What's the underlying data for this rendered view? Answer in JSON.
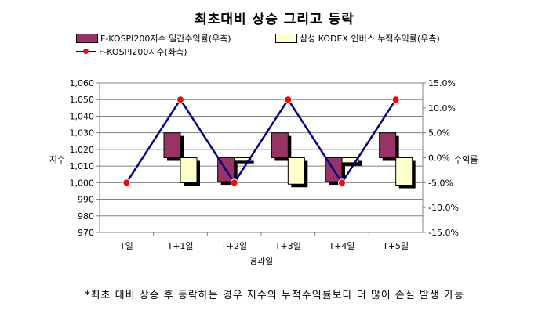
{
  "title": "최초대비 상승 그리고 등락",
  "footnote": "*최초 대비 상승 후 등락하는 경우 지수의 누적수익률보다 더 많이 손실 발생 가능",
  "legend": {
    "series1": "F-KOSPI200지수 일간수익률(우측)",
    "series2": "삼성 KODEX 인버스 누적수익률(우측)",
    "series3": "F-KOSPI200지수(좌측)"
  },
  "colors": {
    "bar1": "#993366",
    "bar2": "#ffffcc",
    "line": "#000080",
    "marker": "#ff0000"
  },
  "chart_data": {
    "type": "bar",
    "title": "최초대비 상승 그리고 등락",
    "xlabel": "경과일",
    "ylabel_left": "지수",
    "ylabel_right": "수익률",
    "categories": [
      "T일",
      "T+1일",
      "T+2일",
      "T+3일",
      "T+4일",
      "T+5일"
    ],
    "ylim_left": [
      970,
      1060
    ],
    "ylim_right": [
      -15,
      15
    ],
    "yticks_left": [
      "970",
      "980",
      "990",
      "1,000",
      "1,010",
      "1,020",
      "1,030",
      "1,040",
      "1,050",
      "1,060"
    ],
    "yticks_right": [
      "-15.0%",
      "-10.0%",
      "-5.0%",
      "0.0%",
      "5.0%",
      "10.0%",
      "15.0%"
    ],
    "grid": true,
    "series": [
      {
        "name": "F-KOSPI200지수 일간수익률(우측)",
        "type": "bar",
        "axis": "right",
        "values": [
          0,
          5.0,
          -4.8,
          5.0,
          -4.8,
          5.0
        ]
      },
      {
        "name": "삼성 KODEX 인버스 누적수익률(우측)",
        "type": "bar",
        "axis": "right",
        "values": [
          0,
          -5.0,
          -0.5,
          -5.3,
          -1.0,
          -5.5
        ]
      },
      {
        "name": "F-KOSPI200지수(좌측)",
        "type": "line",
        "axis": "left",
        "values": [
          1000,
          1050,
          1000,
          1050,
          1000,
          1050
        ]
      }
    ]
  }
}
